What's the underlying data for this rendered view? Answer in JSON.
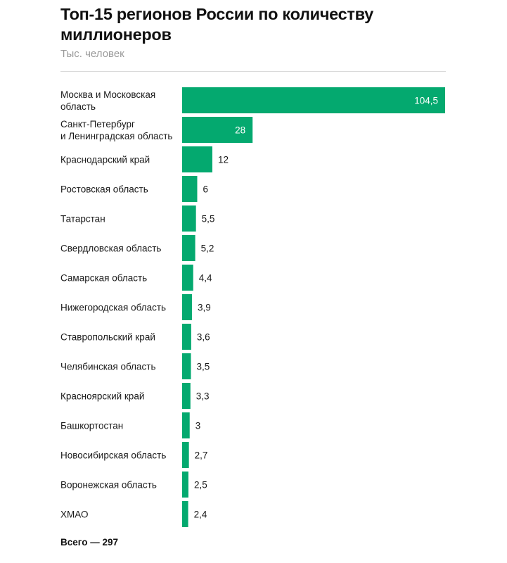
{
  "title": "Топ-15 регионов России по количеству миллионеров",
  "subtitle": "Тыс. человек",
  "total": "Всего — 297",
  "colors": {
    "bar": "#04a96f",
    "inside_label": "#ffffff",
    "label": "#1a1a1a"
  },
  "chart_data": {
    "type": "bar",
    "orientation": "horizontal",
    "unit": "Тыс. человек",
    "categories": [
      [
        "Москва и Московская",
        "область"
      ],
      [
        "Санкт-Петербург",
        "и Ленинградская область"
      ],
      [
        "Краснодарский край"
      ],
      [
        "Ростовская область"
      ],
      [
        "Татарстан"
      ],
      [
        "Свердловская область"
      ],
      [
        "Самарская область"
      ],
      [
        "Нижегородская область"
      ],
      [
        "Ставропольский край"
      ],
      [
        "Челябинская область"
      ],
      [
        "Красноярский край"
      ],
      [
        "Башкортостан"
      ],
      [
        "Новосибирская область"
      ],
      [
        "Воронежская область"
      ],
      [
        "ХМАО"
      ]
    ],
    "values": [
      104.5,
      28,
      12,
      6,
      5.5,
      5.2,
      4.4,
      3.9,
      3.6,
      3.5,
      3.3,
      3,
      2.7,
      2.5,
      2.4
    ],
    "value_labels": [
      "104,5",
      "28",
      "12",
      "6",
      "5,5",
      "5,2",
      "4,4",
      "3,9",
      "3,6",
      "3,5",
      "3,3",
      "3",
      "2,7",
      "2,5",
      "2,4"
    ],
    "xlim": [
      0,
      104.5
    ],
    "grid": false,
    "legend": "none"
  }
}
